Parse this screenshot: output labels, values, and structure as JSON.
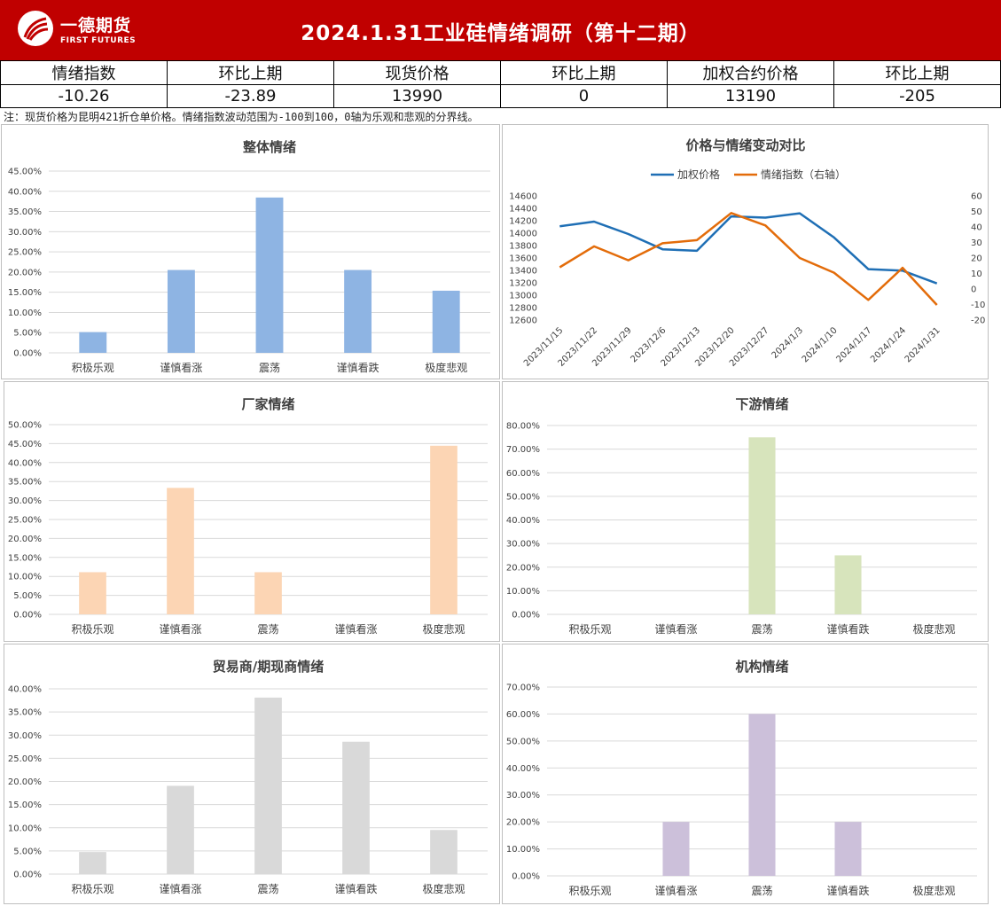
{
  "header": {
    "logo_cn": "一德期货",
    "logo_en": "FIRST FUTURES",
    "title": "2024.1.31工业硅情绪调研（第十二期）",
    "background": "#c00000"
  },
  "summary": {
    "headers": [
      "情绪指数",
      "环比上期",
      "现货价格",
      "环比上期",
      "加权合约价格",
      "环比上期"
    ],
    "values": [
      "-10.26",
      "-23.89",
      "13990",
      "0",
      "13190",
      "-205"
    ]
  },
  "note": "注：现货价格为昆明421折仓单价格。情绪指数波动范围为-100到100，0轴为乐观和悲观的分界线。",
  "chart_data": [
    {
      "id": "overall",
      "type": "bar",
      "title": "整体情绪",
      "categories": [
        "积极乐观",
        "谨慎看涨",
        "震荡",
        "谨慎看跌",
        "极度悲观"
      ],
      "values": [
        5.13,
        20.51,
        38.46,
        20.51,
        15.38
      ],
      "ylim": [
        0,
        45
      ],
      "ytick_step": 5,
      "color": "#8eb4e3",
      "grid": true
    },
    {
      "id": "comparison",
      "type": "line",
      "title": "价格与情绪变动对比",
      "legend_position": "top",
      "x": [
        "2023/11/15",
        "2023/11/22",
        "2023/11/29",
        "2023/12/6",
        "2023/12/13",
        "2023/12/20",
        "2023/12/27",
        "2024/1/3",
        "2024/1/10",
        "2024/1/17",
        "2024/1/24",
        "2024/1/31"
      ],
      "series": [
        {
          "name": "加权价格",
          "axis": "left",
          "color": "#1f6fb5",
          "values": [
            14110,
            14185,
            13985,
            13740,
            13715,
            14270,
            14250,
            14320,
            13930,
            13420,
            13395,
            13190
          ]
        },
        {
          "name": "情绪指数（右轴）",
          "axis": "right",
          "color": "#e36c0a",
          "values": [
            14,
            27.5,
            18.5,
            29.5,
            31.5,
            49,
            41,
            20,
            10.5,
            -7,
            13.63,
            -10.26
          ]
        }
      ],
      "ylim_left": [
        12600,
        14600
      ],
      "ytick_step_left": 200,
      "ylim_right": [
        -20,
        60
      ],
      "ytick_step_right": 10
    },
    {
      "id": "manufacturer",
      "type": "bar",
      "title": "厂家情绪",
      "categories": [
        "积极乐观",
        "谨慎看涨",
        "震荡",
        "谨慎看涨",
        "极度悲观"
      ],
      "values": [
        11.11,
        33.33,
        11.11,
        0,
        44.44
      ],
      "ylim": [
        0,
        50
      ],
      "ytick_step": 5,
      "color": "#fcd5b4",
      "grid": true
    },
    {
      "id": "downstream",
      "type": "bar",
      "title": "下游情绪",
      "categories": [
        "积极乐观",
        "谨慎看涨",
        "震荡",
        "谨慎看跌",
        "极度悲观"
      ],
      "values": [
        0,
        0,
        75,
        25,
        0
      ],
      "ylim": [
        0,
        80
      ],
      "ytick_step": 10,
      "color": "#d7e4bc",
      "grid": true
    },
    {
      "id": "trader",
      "type": "bar",
      "title": "贸易商/期现商情绪",
      "categories": [
        "积极乐观",
        "谨慎看涨",
        "震荡",
        "谨慎看跌",
        "极度悲观"
      ],
      "values": [
        4.76,
        19.05,
        38.1,
        28.57,
        9.52
      ],
      "ylim": [
        0,
        40
      ],
      "ytick_step": 5,
      "color": "#d9d9d9",
      "grid": true
    },
    {
      "id": "institution",
      "type": "bar",
      "title": "机构情绪",
      "categories": [
        "积极乐观",
        "谨慎看涨",
        "震荡",
        "谨慎看跌",
        "极度悲观"
      ],
      "values": [
        0,
        20,
        60,
        20,
        0
      ],
      "ylim": [
        0,
        70
      ],
      "ytick_step": 10,
      "color": "#ccc0da",
      "grid": true
    }
  ]
}
